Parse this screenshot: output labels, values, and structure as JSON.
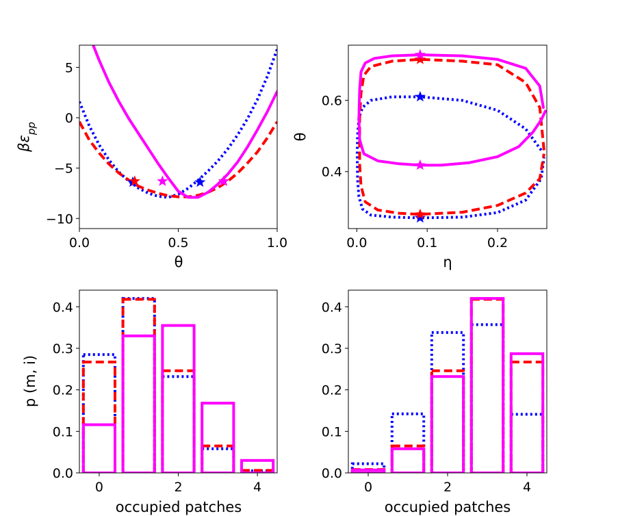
{
  "colors": {
    "solid": "#ff00ff",
    "dashed": "#ff0000",
    "dotted": "#0000ff"
  },
  "chart_data": [
    {
      "id": "energy",
      "type": "line",
      "xlabel": "θ",
      "ylabel": "βε_pp",
      "ylabel_main": "βε",
      "ylabel_sub": "pp",
      "xlim": [
        0,
        1.0
      ],
      "ylim": [
        -11,
        7.2
      ],
      "xticks": [
        0.0,
        0.5,
        1.0
      ],
      "xtick_labels": [
        "0.0",
        "0.5",
        "1.0"
      ],
      "yticks": [
        5,
        0,
        -5,
        -10
      ],
      "ytick_labels": [
        "5",
        "0",
        "−5",
        "−10"
      ],
      "series": [
        {
          "name": "dotted",
          "style": "dotted",
          "x": [
            0.0,
            0.05,
            0.1,
            0.15,
            0.2,
            0.25,
            0.3,
            0.35,
            0.4,
            0.45,
            0.5,
            0.55,
            0.6,
            0.65,
            0.7,
            0.75,
            0.8,
            0.85,
            0.9,
            0.95,
            1.0
          ],
          "y": [
            1.6,
            -0.8,
            -2.7,
            -4.2,
            -5.4,
            -6.3,
            -7.0,
            -7.5,
            -7.8,
            -7.9,
            -7.6,
            -7.0,
            -6.2,
            -5.3,
            -4.3,
            -3.1,
            -1.7,
            -0.1,
            1.8,
            4.1,
            6.8
          ],
          "markers": [
            [
              0.27,
              -6.4
            ],
            [
              0.61,
              -6.4
            ]
          ]
        },
        {
          "name": "dashed",
          "style": "dashed",
          "x": [
            0.0,
            0.05,
            0.1,
            0.15,
            0.2,
            0.25,
            0.3,
            0.35,
            0.4,
            0.45,
            0.5,
            0.55,
            0.6,
            0.65,
            0.7,
            0.75,
            0.8,
            0.85,
            0.9,
            0.95,
            1.0
          ],
          "y": [
            -0.4,
            -2.2,
            -3.5,
            -4.6,
            -5.5,
            -6.2,
            -6.8,
            -7.2,
            -7.5,
            -7.75,
            -7.85,
            -7.85,
            -7.7,
            -7.4,
            -6.95,
            -6.3,
            -5.5,
            -4.5,
            -3.4,
            -2.0,
            -0.4
          ],
          "markers": [
            [
              0.28,
              -6.3
            ],
            [
              0.73,
              -6.3
            ]
          ]
        },
        {
          "name": "solid",
          "style": "solid",
          "x": [
            0.07,
            0.1,
            0.15,
            0.2,
            0.25,
            0.3,
            0.35,
            0.4,
            0.45,
            0.5,
            0.55,
            0.6,
            0.65,
            0.7,
            0.75,
            0.8,
            0.85,
            0.9,
            0.95,
            1.0
          ],
          "y": [
            7.2,
            5.7,
            3.5,
            1.6,
            -0.1,
            -1.6,
            -3.1,
            -4.6,
            -6.0,
            -7.3,
            -7.9,
            -7.9,
            -7.4,
            -6.6,
            -5.6,
            -4.4,
            -2.9,
            -1.2,
            0.6,
            2.6
          ],
          "markers": [
            [
              0.42,
              -6.3
            ],
            [
              0.73,
              -6.3
            ]
          ]
        }
      ]
    },
    {
      "id": "phase",
      "type": "line",
      "xlabel": "η",
      "ylabel": "θ",
      "xlim": [
        -0.012,
        0.27
      ],
      "ylim": [
        0.24,
        0.755
      ],
      "xticks": [
        0.0,
        0.1,
        0.2
      ],
      "xtick_labels": [
        "0.0",
        "0.1",
        "0.2"
      ],
      "yticks": [
        0.6,
        0.4
      ],
      "ytick_labels": [
        "0.6",
        "0.4"
      ],
      "series": [
        {
          "name": "dotted",
          "style": "dotted",
          "x": [
            0.262,
            0.24,
            0.2,
            0.15,
            0.09,
            0.05,
            0.02,
            0.008,
            0.003,
            0.001,
            0.0005,
            0.001,
            0.003,
            0.008,
            0.02,
            0.05,
            0.09,
            0.15,
            0.2,
            0.24,
            0.262,
            0.266
          ],
          "y": [
            0.46,
            0.52,
            0.572,
            0.6,
            0.61,
            0.61,
            0.6,
            0.58,
            0.55,
            0.5,
            0.45,
            0.38,
            0.33,
            0.295,
            0.278,
            0.272,
            0.27,
            0.272,
            0.285,
            0.32,
            0.38,
            0.44
          ],
          "markers": [
            [
              0.09,
              0.61
            ],
            [
              0.09,
              0.27
            ]
          ]
        },
        {
          "name": "dashed",
          "style": "dashed",
          "x": [
            0.266,
            0.26,
            0.24,
            0.2,
            0.15,
            0.09,
            0.05,
            0.02,
            0.01,
            0.006,
            0.004,
            0.004,
            0.006,
            0.012,
            0.03,
            0.06,
            0.09,
            0.15,
            0.2,
            0.24,
            0.26,
            0.266
          ],
          "y": [
            0.46,
            0.58,
            0.65,
            0.7,
            0.71,
            0.715,
            0.71,
            0.695,
            0.67,
            0.62,
            0.55,
            0.42,
            0.36,
            0.315,
            0.292,
            0.283,
            0.28,
            0.286,
            0.305,
            0.34,
            0.38,
            0.45
          ],
          "markers": [
            [
              0.09,
              0.715
            ],
            [
              0.09,
              0.28
            ]
          ]
        },
        {
          "name": "solid",
          "style": "solid",
          "x": [
            0.265,
            0.26,
            0.24,
            0.2,
            0.15,
            0.09,
            0.05,
            0.025,
            0.012,
            0.006,
            0.004,
            0.003,
            0.004,
            0.01,
            0.03,
            0.06,
            0.09,
            0.12,
            0.16,
            0.2,
            0.23,
            0.25,
            0.262,
            0.268
          ],
          "y": [
            0.58,
            0.64,
            0.69,
            0.715,
            0.725,
            0.728,
            0.725,
            0.718,
            0.705,
            0.68,
            0.63,
            0.55,
            0.49,
            0.45,
            0.43,
            0.422,
            0.418,
            0.418,
            0.425,
            0.442,
            0.47,
            0.51,
            0.545,
            0.57
          ],
          "markers": [
            [
              0.09,
              0.728
            ],
            [
              0.09,
              0.418
            ]
          ]
        }
      ]
    },
    {
      "id": "dist-left",
      "type": "bar",
      "xlabel": "occupied patches",
      "ylabel": "p (m, i)",
      "categories": [
        0,
        1,
        2,
        3,
        4
      ],
      "xlim": [
        -0.5,
        4.5
      ],
      "ylim": [
        0,
        0.44
      ],
      "xticks": [
        0,
        2,
        4
      ],
      "xtick_labels": [
        "0",
        "2",
        "4"
      ],
      "yticks": [
        0.0,
        0.1,
        0.2,
        0.3,
        0.4
      ],
      "ytick_labels": [
        "0.0",
        "0.1",
        "0.2",
        "0.3",
        "0.4"
      ],
      "series": [
        {
          "name": "dotted",
          "style": "dotted",
          "values": [
            0.285,
            0.42,
            0.232,
            0.058,
            0.005
          ]
        },
        {
          "name": "dashed",
          "style": "dashed",
          "values": [
            0.267,
            0.418,
            0.246,
            0.065,
            0.006
          ]
        },
        {
          "name": "solid",
          "style": "solid",
          "values": [
            0.116,
            0.33,
            0.355,
            0.168,
            0.03
          ]
        }
      ]
    },
    {
      "id": "dist-right",
      "type": "bar",
      "xlabel": "occupied patches",
      "ylabel": "",
      "categories": [
        0,
        1,
        2,
        3,
        4
      ],
      "xlim": [
        -0.5,
        4.5
      ],
      "ylim": [
        0,
        0.44
      ],
      "xticks": [
        0,
        2,
        4
      ],
      "xtick_labels": [
        "0",
        "2",
        "4"
      ],
      "yticks": [
        0.0,
        0.1,
        0.2,
        0.3,
        0.4
      ],
      "ytick_labels": [
        "0.0",
        "0.1",
        "0.2",
        "0.3",
        "0.4"
      ],
      "series": [
        {
          "name": "dotted",
          "style": "dotted",
          "values": [
            0.022,
            0.142,
            0.338,
            0.357,
            0.141
          ]
        },
        {
          "name": "dashed",
          "style": "dashed",
          "values": [
            0.008,
            0.065,
            0.246,
            0.418,
            0.267
          ]
        },
        {
          "name": "solid",
          "style": "solid",
          "values": [
            0.007,
            0.058,
            0.232,
            0.42,
            0.287
          ]
        }
      ]
    }
  ]
}
